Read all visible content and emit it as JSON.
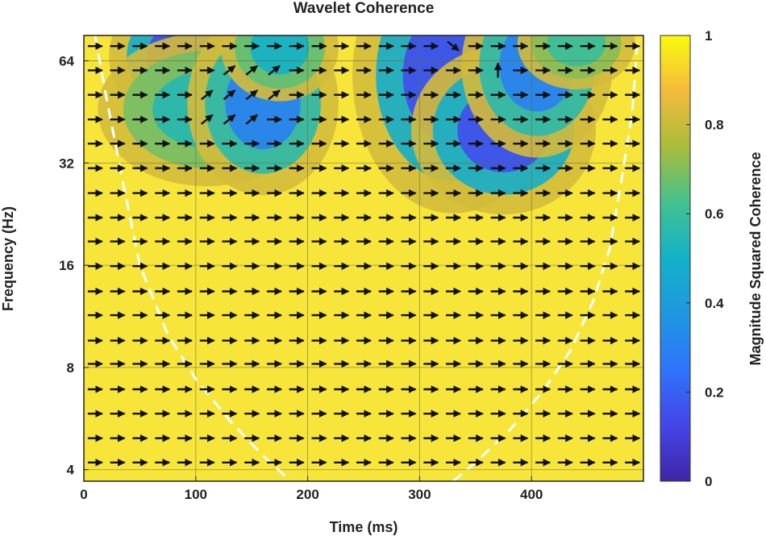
{
  "chart_data": {
    "type": "heatmap",
    "title": "Wavelet Coherence",
    "xlabel": "Time (ms)",
    "ylabel": "Frequency (Hz)",
    "colorbar_label": "Magnitude Squared Coherence",
    "xlim": [
      0,
      500
    ],
    "ylim_hz": [
      3.7,
      76
    ],
    "y_scale": "log2",
    "x_ticks": [
      0,
      100,
      200,
      300,
      400
    ],
    "x_tick_labels": [
      "0",
      "100",
      "200",
      "300",
      "400"
    ],
    "y_ticks": [
      4,
      8,
      16,
      32,
      64
    ],
    "y_tick_labels": [
      "4",
      "8",
      "16",
      "32",
      "64"
    ],
    "colorbar_ticks": [
      0,
      0.2,
      0.4,
      0.6,
      0.8,
      1
    ],
    "colorbar_tick_labels": [
      "0",
      "0.2",
      "0.4",
      "0.6",
      "0.8",
      "1"
    ],
    "colormap": "parula",
    "grid": true,
    "cone_of_influence": {
      "style": "white dashed",
      "left": [
        [
          10,
          76
        ],
        [
          20,
          50
        ],
        [
          35,
          28
        ],
        [
          50,
          16
        ],
        [
          75,
          10
        ],
        [
          100,
          7.4
        ],
        [
          130,
          5.6
        ],
        [
          160,
          4.4
        ],
        [
          185,
          3.7
        ]
      ],
      "right": [
        [
          330,
          3.7
        ],
        [
          350,
          4.2
        ],
        [
          380,
          5.2
        ],
        [
          410,
          6.8
        ],
        [
          435,
          9
        ],
        [
          455,
          12.5
        ],
        [
          470,
          18
        ],
        [
          480,
          28
        ],
        [
          490,
          45
        ],
        [
          495,
          76
        ]
      ]
    },
    "low_coherence_regions": [
      {
        "t_center": 90,
        "f_center_hz": 66,
        "t_width": 45,
        "f_width_oct": 0.45,
        "coherence": 0.15
      },
      {
        "t_center": 110,
        "f_center_hz": 46,
        "t_width": 65,
        "f_width_oct": 0.5,
        "coherence": 0.55
      },
      {
        "t_center": 160,
        "f_center_hz": 48,
        "t_width": 45,
        "f_width_oct": 0.6,
        "coherence": 0.3
      },
      {
        "t_center": 175,
        "f_center_hz": 70,
        "t_width": 35,
        "f_width_oct": 0.35,
        "coherence": 0.5
      },
      {
        "t_center": 330,
        "f_center_hz": 58,
        "t_width": 60,
        "f_width_oct": 0.9,
        "coherence": 0.15
      },
      {
        "t_center": 375,
        "f_center_hz": 40,
        "t_width": 55,
        "f_width_oct": 0.55,
        "coherence": 0.15
      },
      {
        "t_center": 405,
        "f_center_hz": 62,
        "t_width": 45,
        "f_width_oct": 0.6,
        "coherence": 0.3
      },
      {
        "t_center": 440,
        "f_center_hz": 72,
        "t_width": 35,
        "f_width_oct": 0.3,
        "coherence": 0.6
      }
    ],
    "phase_arrows": {
      "t_step_ms": 20,
      "f_rows_hz": [
        3.55,
        4.2,
        4.95,
        5.85,
        6.9,
        8.2,
        9.6,
        11.4,
        13.4,
        15.9,
        18.8,
        22.1,
        26.1,
        30.9,
        36.5,
        43.0,
        50.8,
        60.0,
        70.7
      ],
      "default_direction": "right (in-phase)",
      "overrides": [
        {
          "t": 370,
          "f_hz": 60,
          "dir": "up"
        },
        {
          "t": 385,
          "f_hz": 60,
          "dir": "up"
        },
        {
          "t": 400,
          "f_hz": 60,
          "dir": "up"
        },
        {
          "t": 385,
          "f_hz": 50.8,
          "dir": "up"
        },
        {
          "t": 400,
          "f_hz": 50.8,
          "dir": "up"
        },
        {
          "t": 320,
          "f_hz": 43,
          "dir": "down-right"
        },
        {
          "t": 335,
          "f_hz": 43,
          "dir": "down-right"
        },
        {
          "t": 300,
          "f_hz": 36.5,
          "dir": "down-right"
        },
        {
          "t": 320,
          "f_hz": 36.5,
          "dir": "down-right"
        },
        {
          "t": 110,
          "f_hz": 43,
          "dir": "up-right"
        },
        {
          "t": 130,
          "f_hz": 43,
          "dir": "up-right"
        },
        {
          "t": 150,
          "f_hz": 43,
          "dir": "up-right"
        },
        {
          "t": 110,
          "f_hz": 50.8,
          "dir": "up-right"
        },
        {
          "t": 130,
          "f_hz": 50.8,
          "dir": "up-right"
        },
        {
          "t": 150,
          "f_hz": 50.8,
          "dir": "up-right"
        },
        {
          "t": 170,
          "f_hz": 50.8,
          "dir": "up-right"
        },
        {
          "t": 130,
          "f_hz": 60,
          "dir": "up-right"
        },
        {
          "t": 150,
          "f_hz": 60,
          "dir": "up-right"
        },
        {
          "t": 170,
          "f_hz": 60,
          "dir": "up-right"
        },
        {
          "t": 330,
          "f_hz": 70.7,
          "dir": "down-right"
        },
        {
          "t": 380,
          "f_hz": 70.7,
          "dir": "up"
        },
        {
          "t": 420,
          "f_hz": 70.7,
          "dir": "down"
        }
      ]
    }
  }
}
